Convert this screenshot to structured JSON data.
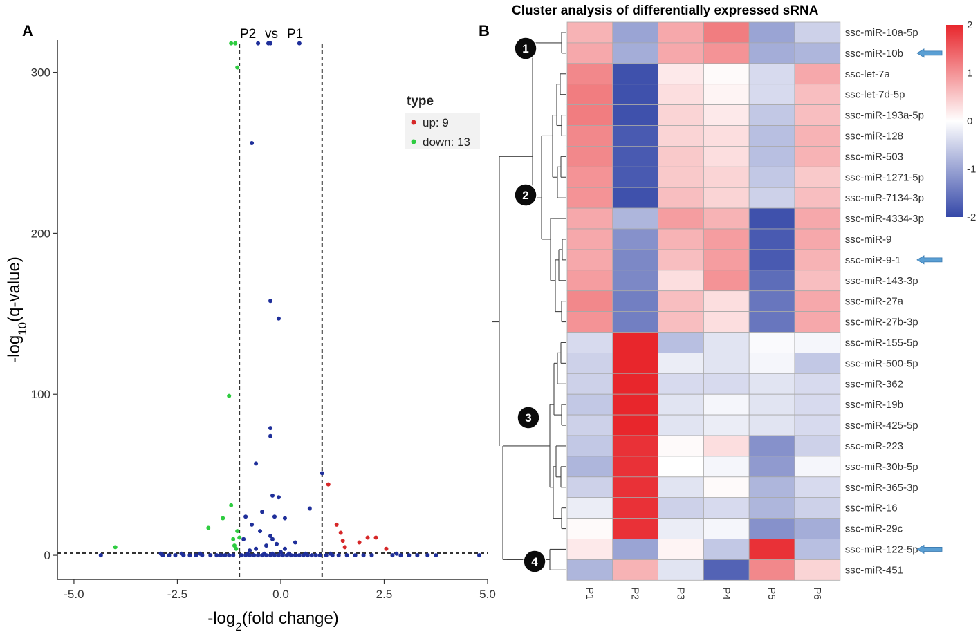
{
  "colors": {
    "up": "#d62728",
    "down": "#2ecc40",
    "nodiff": "#1f2f9a",
    "hm_high": "#e8262c",
    "hm_mid": "#ffffff",
    "hm_low": "#3548a8",
    "arrow": "#5a9fd4"
  },
  "chart_data": [
    {
      "panel": "A",
      "type": "scatter",
      "subtitle_left": "P2",
      "subtitle_mid": "vs",
      "subtitle_right": "P1",
      "xlabel_prefix": "-log",
      "xlabel_sub": "2",
      "xlabel_suffix": "(fold change)",
      "ylabel_prefix": "-log",
      "ylabel_sub": "10",
      "ylabel_suffix": "(q-value)",
      "xlim": [
        -5.4,
        5.0
      ],
      "ylim": [
        -15,
        320
      ],
      "xticks": [
        -5.0,
        -2.5,
        0.0,
        2.5,
        5.0
      ],
      "xtick_labels": [
        "-5.0",
        "-2.5",
        "0.0",
        "2.5",
        "5.0"
      ],
      "yticks": [
        0,
        100,
        200,
        300
      ],
      "ytick_labels": [
        "0",
        "100",
        "200",
        "300"
      ],
      "vlines": [
        -1,
        1
      ],
      "hline": 1.3,
      "legend": {
        "title": "type",
        "entries": [
          {
            "label": "up: 9",
            "key": "up"
          },
          {
            "label": "down: 13",
            "key": "down"
          }
        ]
      },
      "series": [
        {
          "name": "up",
          "points": [
            [
              1.15,
              44
            ],
            [
              1.35,
              19
            ],
            [
              1.45,
              14
            ],
            [
              1.5,
              9
            ],
            [
              1.55,
              5
            ],
            [
              1.9,
              8
            ],
            [
              2.1,
              11
            ],
            [
              2.3,
              11
            ],
            [
              2.55,
              4
            ]
          ]
        },
        {
          "name": "down",
          "points": [
            [
              -1.2,
              318
            ],
            [
              -1.1,
              318
            ],
            [
              -1.05,
              303
            ],
            [
              -4.0,
              5
            ],
            [
              -1.75,
              17
            ],
            [
              -1.4,
              23
            ],
            [
              -1.25,
              99
            ],
            [
              -1.2,
              31
            ],
            [
              -1.15,
              10
            ],
            [
              -1.12,
              6
            ],
            [
              -1.08,
              4
            ],
            [
              -1.05,
              15
            ],
            [
              -1.0,
              11
            ]
          ]
        },
        {
          "name": "nodiff",
          "points": [
            [
              -0.55,
              318
            ],
            [
              -0.3,
              318
            ],
            [
              -0.25,
              318
            ],
            [
              0.45,
              318
            ],
            [
              -0.7,
              256
            ],
            [
              -0.25,
              158
            ],
            [
              -0.05,
              147
            ],
            [
              -0.25,
              79
            ],
            [
              -0.25,
              74
            ],
            [
              -0.6,
              57
            ],
            [
              1.0,
              51
            ],
            [
              -0.2,
              37
            ],
            [
              -0.05,
              36
            ],
            [
              0.7,
              29
            ],
            [
              -0.85,
              24
            ],
            [
              -0.45,
              27
            ],
            [
              -0.15,
              24
            ],
            [
              0.1,
              23
            ],
            [
              -0.7,
              19
            ],
            [
              -0.5,
              15
            ],
            [
              -0.25,
              12
            ],
            [
              -0.2,
              10
            ],
            [
              -0.1,
              7
            ],
            [
              0.35,
              8
            ],
            [
              -0.9,
              10
            ],
            [
              -0.35,
              6
            ],
            [
              -0.6,
              4
            ],
            [
              0.1,
              4
            ],
            [
              -0.75,
              3
            ],
            [
              0.0,
              2
            ],
            [
              -4.35,
              0
            ],
            [
              -2.85,
              0
            ],
            [
              -2.7,
              0
            ],
            [
              -2.55,
              0
            ],
            [
              -2.35,
              0
            ],
            [
              -2.2,
              0
            ],
            [
              -2.05,
              0
            ],
            [
              -1.9,
              0
            ],
            [
              -1.7,
              0
            ],
            [
              -1.55,
              0
            ],
            [
              -1.45,
              0
            ],
            [
              -1.35,
              0
            ],
            [
              -1.25,
              0
            ],
            [
              -1.15,
              0
            ],
            [
              -0.95,
              0
            ],
            [
              -0.85,
              0
            ],
            [
              -0.75,
              0
            ],
            [
              -0.65,
              0
            ],
            [
              -0.55,
              0
            ],
            [
              -0.45,
              0
            ],
            [
              -0.35,
              0
            ],
            [
              -0.25,
              0
            ],
            [
              -0.15,
              0
            ],
            [
              -0.05,
              0
            ],
            [
              0.05,
              0
            ],
            [
              0.15,
              0
            ],
            [
              0.25,
              0
            ],
            [
              0.35,
              0
            ],
            [
              0.45,
              0
            ],
            [
              0.55,
              0
            ],
            [
              0.65,
              0
            ],
            [
              0.75,
              0
            ],
            [
              0.85,
              0
            ],
            [
              0.95,
              0
            ],
            [
              1.1,
              0
            ],
            [
              1.25,
              0
            ],
            [
              1.4,
              0
            ],
            [
              1.6,
              0
            ],
            [
              1.8,
              0
            ],
            [
              2.0,
              0
            ],
            [
              2.2,
              0
            ],
            [
              2.7,
              0
            ],
            [
              2.9,
              0
            ],
            [
              3.1,
              0
            ],
            [
              3.3,
              0
            ],
            [
              3.55,
              0
            ],
            [
              3.75,
              0
            ],
            [
              4.8,
              0
            ],
            [
              -2.9,
              1
            ],
            [
              -1.95,
              1
            ],
            [
              -0.8,
              1
            ],
            [
              -0.4,
              1
            ],
            [
              -0.2,
              1
            ],
            [
              0.2,
              1
            ],
            [
              0.6,
              1
            ],
            [
              1.2,
              1
            ],
            [
              2.8,
              1
            ],
            [
              -2.4,
              1
            ]
          ]
        }
      ]
    },
    {
      "panel": "B",
      "type": "heatmap",
      "title": "Cluster analysis of differentially expressed sRNA",
      "columns": [
        "P1",
        "P2",
        "P3",
        "P4",
        "P5",
        "P6"
      ],
      "rows": [
        "ssc-miR-10a-5p",
        "ssc-miR-10b",
        "ssc-let-7a",
        "ssc-let-7d-5p",
        "ssc-miR-193a-5p",
        "ssc-miR-128",
        "ssc-miR-503",
        "ssc-miR-1271-5p",
        "ssc-miR-7134-3p",
        "ssc-miR-4334-3p",
        "ssc-miR-9",
        "ssc-miR-9-1",
        "ssc-miR-143-3p",
        "ssc-miR-27a",
        "ssc-miR-27b-3p",
        "ssc-miR-155-5p",
        "ssc-miR-500-5p",
        "ssc-miR-362",
        "ssc-miR-19b",
        "ssc-miR-425-5p",
        "ssc-miR-223",
        "ssc-miR-30b-5p",
        "ssc-miR-365-3p",
        "ssc-miR-16",
        "ssc-miR-29c",
        "ssc-miR-122-5p",
        "ssc-miR-451"
      ],
      "values": [
        [
          0.7,
          -1.0,
          0.8,
          1.2,
          -1.0,
          -0.5
        ],
        [
          0.8,
          -0.9,
          0.8,
          1.0,
          -0.9,
          -0.8
        ],
        [
          1.1,
          -1.9,
          0.2,
          0.05,
          -0.4,
          0.8
        ],
        [
          1.2,
          -1.9,
          0.3,
          0.1,
          -0.4,
          0.6
        ],
        [
          1.2,
          -1.9,
          0.4,
          0.2,
          -0.6,
          0.6
        ],
        [
          1.1,
          -1.8,
          0.4,
          0.3,
          -0.7,
          0.7
        ],
        [
          1.1,
          -1.8,
          0.5,
          0.3,
          -0.7,
          0.7
        ],
        [
          1.0,
          -1.8,
          0.5,
          0.4,
          -0.6,
          0.5
        ],
        [
          1.0,
          -1.9,
          0.6,
          0.4,
          -0.5,
          0.6
        ],
        [
          0.8,
          -0.8,
          0.9,
          0.7,
          -1.9,
          0.8
        ],
        [
          0.8,
          -1.2,
          0.7,
          0.9,
          -1.8,
          0.8
        ],
        [
          0.8,
          -1.3,
          0.6,
          0.9,
          -1.8,
          0.7
        ],
        [
          0.9,
          -1.3,
          0.3,
          1.0,
          -1.6,
          0.6
        ],
        [
          1.1,
          -1.4,
          0.6,
          0.3,
          -1.5,
          0.8
        ],
        [
          1.0,
          -1.4,
          0.6,
          0.3,
          -1.5,
          0.8
        ],
        [
          -0.4,
          2.0,
          -0.7,
          -0.3,
          -0.05,
          -0.1
        ],
        [
          -0.5,
          2.0,
          -0.2,
          -0.3,
          -0.1,
          -0.6
        ],
        [
          -0.5,
          2.0,
          -0.4,
          -0.4,
          -0.3,
          -0.4
        ],
        [
          -0.6,
          2.0,
          -0.3,
          -0.1,
          -0.3,
          -0.4
        ],
        [
          -0.5,
          2.0,
          -0.3,
          -0.2,
          -0.3,
          -0.4
        ],
        [
          -0.6,
          1.9,
          0.05,
          0.3,
          -1.2,
          -0.5
        ],
        [
          -0.8,
          1.9,
          0.0,
          -0.1,
          -1.1,
          -0.1
        ],
        [
          -0.5,
          1.9,
          -0.3,
          0.05,
          -0.8,
          -0.4
        ],
        [
          -0.2,
          1.9,
          -0.5,
          -0.4,
          -0.8,
          -0.5
        ],
        [
          0.05,
          1.9,
          -0.2,
          -0.1,
          -1.2,
          -0.9
        ],
        [
          0.2,
          -1.0,
          0.1,
          -0.6,
          1.9,
          -0.7
        ],
        [
          -0.8,
          0.7,
          -0.3,
          -1.7,
          1.1,
          0.4
        ]
      ],
      "colorbar": {
        "min": -2,
        "max": 2,
        "tick_labels": [
          "2",
          "1",
          "0",
          "-1",
          "-2"
        ]
      },
      "clusters": [
        {
          "label": "1"
        },
        {
          "label": "2"
        },
        {
          "label": "3"
        },
        {
          "label": "4"
        }
      ],
      "highlighted_rows": [
        "ssc-miR-10b",
        "ssc-miR-9-1",
        "ssc-miR-122-5p"
      ]
    }
  ]
}
